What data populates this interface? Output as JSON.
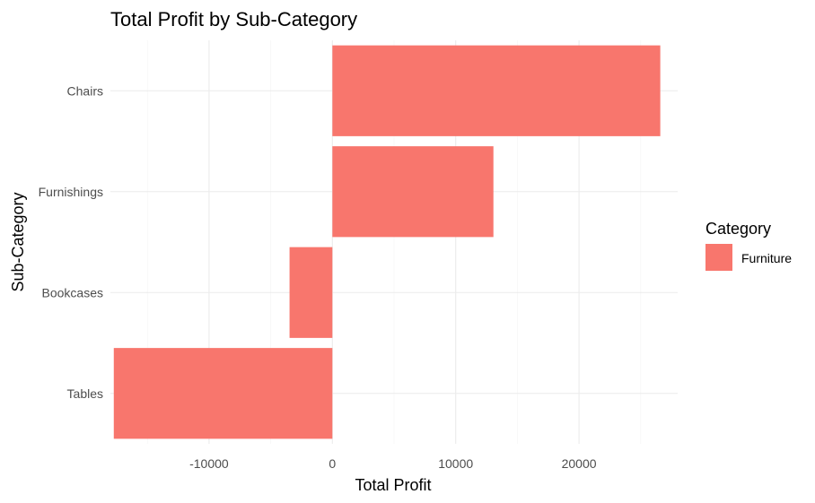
{
  "chart_data": {
    "type": "bar",
    "orientation": "horizontal",
    "title": "Total Profit by Sub-Category",
    "xlabel": "Total Profit",
    "ylabel": "Sub-Category",
    "categories": [
      "Tables",
      "Bookcases",
      "Furnishings",
      "Chairs"
    ],
    "series": [
      {
        "name": "Furniture",
        "values": [
          -17725,
          -3473,
          13059,
          26590
        ]
      }
    ],
    "xlim": [
      -18000,
      28000
    ],
    "x_ticks": [
      -10000,
      0,
      10000,
      20000
    ],
    "x_tick_labels": [
      "-10000",
      "0",
      "10000",
      "20000"
    ],
    "grid": true,
    "legend": {
      "title": "Category",
      "position": "right",
      "entries": [
        "Furniture"
      ]
    },
    "colors": {
      "Furniture": "#F8766D"
    }
  }
}
